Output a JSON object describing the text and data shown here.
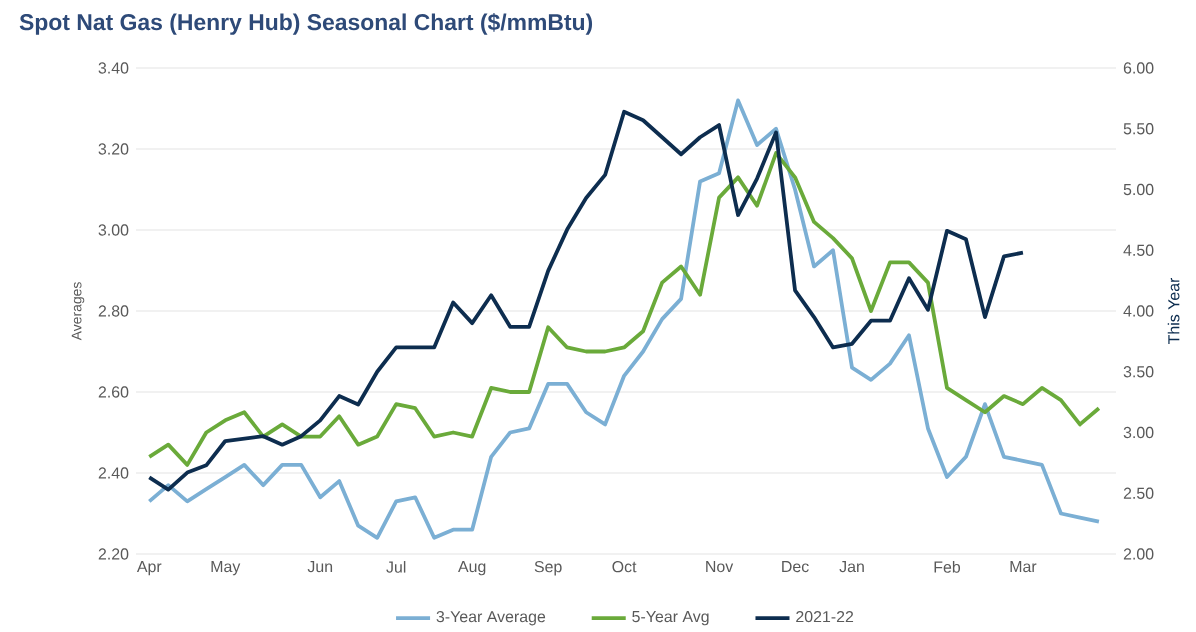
{
  "chart_data": {
    "type": "line",
    "title": "Spot Nat Gas (Henry Hub) Seasonal Chart ($/mmBtu)",
    "ylabel": "Averages",
    "y2label": "This Year",
    "categories": [
      "Apr",
      null,
      null,
      null,
      "May",
      null,
      null,
      null,
      null,
      "Jun",
      null,
      null,
      null,
      "Jul",
      null,
      null,
      null,
      "Aug",
      null,
      null,
      null,
      "Sep",
      null,
      null,
      null,
      "Oct",
      null,
      null,
      null,
      null,
      "Nov",
      null,
      null,
      null,
      "Dec",
      null,
      null,
      "Jan",
      null,
      null,
      null,
      null,
      "Feb",
      null,
      null,
      null,
      "Mar",
      null,
      null,
      null,
      null
    ],
    "series": [
      {
        "name": "3-Year Average",
        "color": "#7bafd4",
        "values": [
          2.33,
          2.37,
          2.33,
          2.36,
          2.39,
          2.42,
          2.37,
          2.42,
          2.42,
          2.34,
          2.38,
          2.27,
          2.24,
          2.33,
          2.34,
          2.24,
          2.26,
          2.26,
          2.44,
          2.5,
          2.51,
          2.62,
          2.62,
          2.55,
          2.52,
          2.64,
          2.7,
          2.78,
          2.83,
          3.12,
          3.14,
          3.32,
          3.21,
          3.25,
          3.1,
          2.91,
          2.95,
          2.66,
          2.63,
          2.67,
          2.74,
          2.51,
          2.39,
          2.44,
          2.57,
          2.44,
          2.43,
          2.42,
          2.3,
          2.29,
          2.28
        ]
      },
      {
        "name": "5-Year Avg",
        "color": "#6aaa3a",
        "values": [
          2.44,
          2.47,
          2.42,
          2.5,
          2.53,
          2.55,
          2.49,
          2.52,
          2.49,
          2.49,
          2.54,
          2.47,
          2.49,
          2.57,
          2.56,
          2.49,
          2.5,
          2.49,
          2.61,
          2.6,
          2.6,
          2.76,
          2.71,
          2.7,
          2.7,
          2.71,
          2.75,
          2.87,
          2.91,
          2.84,
          3.08,
          3.13,
          3.06,
          3.19,
          3.13,
          3.02,
          2.98,
          2.93,
          2.8,
          2.92,
          2.92,
          2.87,
          2.61,
          2.58,
          2.55,
          2.59,
          2.57,
          2.61,
          2.58,
          2.52,
          2.56
        ]
      },
      {
        "name": "2021-22",
        "color": "#0d2d4f",
        "axis": "y2",
        "values": [
          2.63,
          2.53,
          2.67,
          2.73,
          2.93,
          2.95,
          2.97,
          2.9,
          2.97,
          3.1,
          3.3,
          3.23,
          3.5,
          3.7,
          3.7,
          3.7,
          4.07,
          3.9,
          4.13,
          3.87,
          3.87,
          4.33,
          4.67,
          4.93,
          5.12,
          5.64,
          5.57,
          5.43,
          5.29,
          5.43,
          5.53,
          4.79,
          5.09,
          5.47,
          4.17,
          3.95,
          3.7,
          3.73,
          3.92,
          3.92,
          4.27,
          4.01,
          4.66,
          4.59,
          3.95,
          4.45,
          4.48,
          null,
          null,
          null,
          null
        ]
      }
    ],
    "ylim": [
      2.2,
      3.4
    ],
    "yticks": [
      {
        "value": 2.2,
        "label": "2.20"
      },
      {
        "value": 2.4,
        "label": "2.40"
      },
      {
        "value": 2.6,
        "label": "2.60"
      },
      {
        "value": 2.8,
        "label": "2.80"
      },
      {
        "value": 3.0,
        "label": "3.00"
      },
      {
        "value": 3.2,
        "label": "3.20"
      },
      {
        "value": 3.4,
        "label": "3.40"
      }
    ],
    "y2lim": [
      2.0,
      6.0
    ],
    "y2ticks": [
      {
        "value": 2.0,
        "label": "2.00"
      },
      {
        "value": 2.5,
        "label": "2.50"
      },
      {
        "value": 3.0,
        "label": "3.00"
      },
      {
        "value": 3.5,
        "label": "3.50"
      },
      {
        "value": 4.0,
        "label": "4.00"
      },
      {
        "value": 4.5,
        "label": "4.50"
      },
      {
        "value": 5.0,
        "label": "5.00"
      },
      {
        "value": 5.5,
        "label": "5.50"
      },
      {
        "value": 6.0,
        "label": "6.00"
      }
    ],
    "grid": "y",
    "legend": "bottom",
    "marker": "none",
    "line_style": "solid"
  }
}
